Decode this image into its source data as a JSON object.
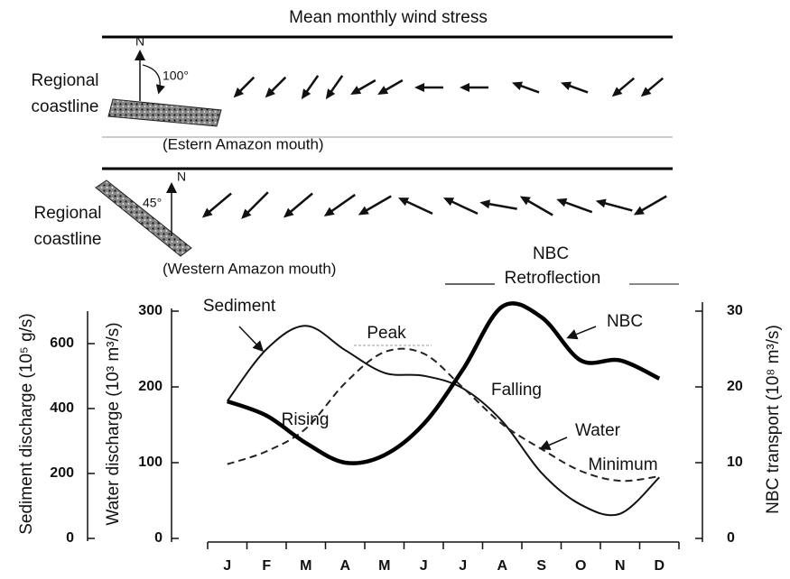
{
  "title": "Mean monthly wind stress",
  "wind_panels": [
    {
      "coastline_label": [
        "Regional",
        "coastline"
      ],
      "north": "N",
      "angle": "100°",
      "caption": "(Estern Amazon mouth)",
      "directions": [
        225,
        225,
        215,
        215,
        240,
        240,
        270,
        270,
        290,
        290,
        230,
        230
      ]
    },
    {
      "coastline_label": [
        "Regional",
        "coastline"
      ],
      "north": "N",
      "angle": "45°",
      "caption": "(Western Amazon mouth)",
      "directions": [
        230,
        225,
        230,
        235,
        240,
        295,
        295,
        280,
        300,
        290,
        285,
        240
      ]
    }
  ],
  "chart_data": {
    "type": "line",
    "categories": [
      "J",
      "F",
      "M",
      "A",
      "M",
      "J",
      "J",
      "A",
      "S",
      "O",
      "N",
      "D"
    ],
    "ylabel": "Water discharge (10³ m³/s)",
    "ylim": [
      0,
      300
    ],
    "yticks": [
      0,
      100,
      200,
      300
    ],
    "y2label": "NBC transport (10⁸ m³/s)",
    "y2lim": [
      0,
      30
    ],
    "y2ticks": [
      0,
      10,
      20,
      30
    ],
    "y3label": "Sediment discharge (10⁵ g/s)",
    "y3lim": [
      0,
      700
    ],
    "y3ticks": [
      0,
      200,
      400,
      600
    ],
    "series": [
      {
        "name": "Sediment",
        "axis": "y3",
        "color": "#111111",
        "width": 2,
        "style": "solid",
        "values": [
          423,
          583,
          655,
          580,
          510,
          501,
          462,
          361,
          202,
          104,
          76,
          188
        ]
      },
      {
        "name": "Water",
        "axis": "y",
        "color": "#222222",
        "width": 2,
        "style": "dashed",
        "values": [
          98,
          115,
          145,
          205,
          246,
          244,
          199,
          151,
          118,
          89,
          76,
          82
        ]
      },
      {
        "name": "NBC",
        "axis": "y2",
        "color": "#000000",
        "width": 4.5,
        "style": "solid",
        "values": [
          18.1,
          16.2,
          12.6,
          10.0,
          11.0,
          15.1,
          22.3,
          30.6,
          29.2,
          23.5,
          23.5,
          21.1
        ]
      }
    ],
    "annotations": [
      "Peak",
      "Rising",
      "Falling",
      "Minimum"
    ],
    "retroflection_label": [
      "NBC",
      "Retroflection"
    ]
  }
}
